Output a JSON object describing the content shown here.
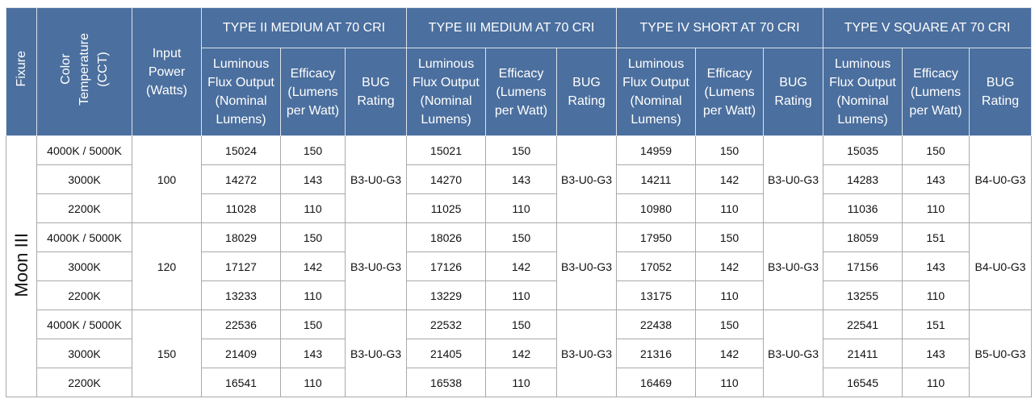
{
  "header": {
    "fixure": "Fixure",
    "cct": [
      "Color",
      "Temperature",
      "(CCT)"
    ],
    "power": [
      "Input",
      "Power",
      "(Watts)"
    ],
    "types": [
      "TYPE II MEDIUM AT 70 CRI",
      "TYPE III MEDIUM AT 70 CRI",
      "TYPE IV SHORT AT 70 CRI",
      "TYPE V SQUARE AT 70 CRI"
    ],
    "lumens": [
      "Luminous",
      "Flux Output",
      "(Nominal",
      "Lumens)"
    ],
    "efficacy": [
      "Efficacy",
      "(Lumens",
      "per Watt)"
    ],
    "bug": [
      "BUG",
      "Rating"
    ]
  },
  "fixture_name": "Moon III",
  "groups": [
    {
      "power": "100",
      "bug": [
        "B3-U0-G3",
        "B3-U0-G3",
        "B3-U0-G3",
        "B4-U0-G3"
      ],
      "rows": [
        {
          "cct": "4000K / 5000K",
          "vals": [
            [
              "15024",
              "150"
            ],
            [
              "15021",
              "150"
            ],
            [
              "14959",
              "150"
            ],
            [
              "15035",
              "150"
            ]
          ]
        },
        {
          "cct": "3000K",
          "vals": [
            [
              "14272",
              "143"
            ],
            [
              "14270",
              "143"
            ],
            [
              "14211",
              "142"
            ],
            [
              "14283",
              "143"
            ]
          ]
        },
        {
          "cct": "2200K",
          "vals": [
            [
              "11028",
              "110"
            ],
            [
              "11025",
              "110"
            ],
            [
              "10980",
              "110"
            ],
            [
              "11036",
              "110"
            ]
          ]
        }
      ]
    },
    {
      "power": "120",
      "bug": [
        "B3-U0-G3",
        "B3-U0-G3",
        "B3-U0-G3",
        "B4-U0-G3"
      ],
      "rows": [
        {
          "cct": "4000K / 5000K",
          "vals": [
            [
              "18029",
              "150"
            ],
            [
              "18026",
              "150"
            ],
            [
              "17950",
              "150"
            ],
            [
              "18059",
              "151"
            ]
          ]
        },
        {
          "cct": "3000K",
          "vals": [
            [
              "17127",
              "142"
            ],
            [
              "17126",
              "142"
            ],
            [
              "17052",
              "142"
            ],
            [
              "17156",
              "143"
            ]
          ]
        },
        {
          "cct": "2200K",
          "vals": [
            [
              "13233",
              "110"
            ],
            [
              "13229",
              "110"
            ],
            [
              "13175",
              "110"
            ],
            [
              "13255",
              "110"
            ]
          ]
        }
      ]
    },
    {
      "power": "150",
      "bug": [
        "B3-U0-G3",
        "B3-U0-G3",
        "B3-U0-G3",
        "B5-U0-G3"
      ],
      "rows": [
        {
          "cct": "4000K / 5000K",
          "vals": [
            [
              "22536",
              "150"
            ],
            [
              "22532",
              "150"
            ],
            [
              "22438",
              "150"
            ],
            [
              "22541",
              "151"
            ]
          ]
        },
        {
          "cct": "3000K",
          "vals": [
            [
              "21409",
              "143"
            ],
            [
              "21405",
              "142"
            ],
            [
              "21316",
              "142"
            ],
            [
              "21411",
              "143"
            ]
          ]
        },
        {
          "cct": "2200K",
          "vals": [
            [
              "16541",
              "110"
            ],
            [
              "16538",
              "110"
            ],
            [
              "16469",
              "110"
            ],
            [
              "16545",
              "110"
            ]
          ]
        }
      ]
    }
  ]
}
